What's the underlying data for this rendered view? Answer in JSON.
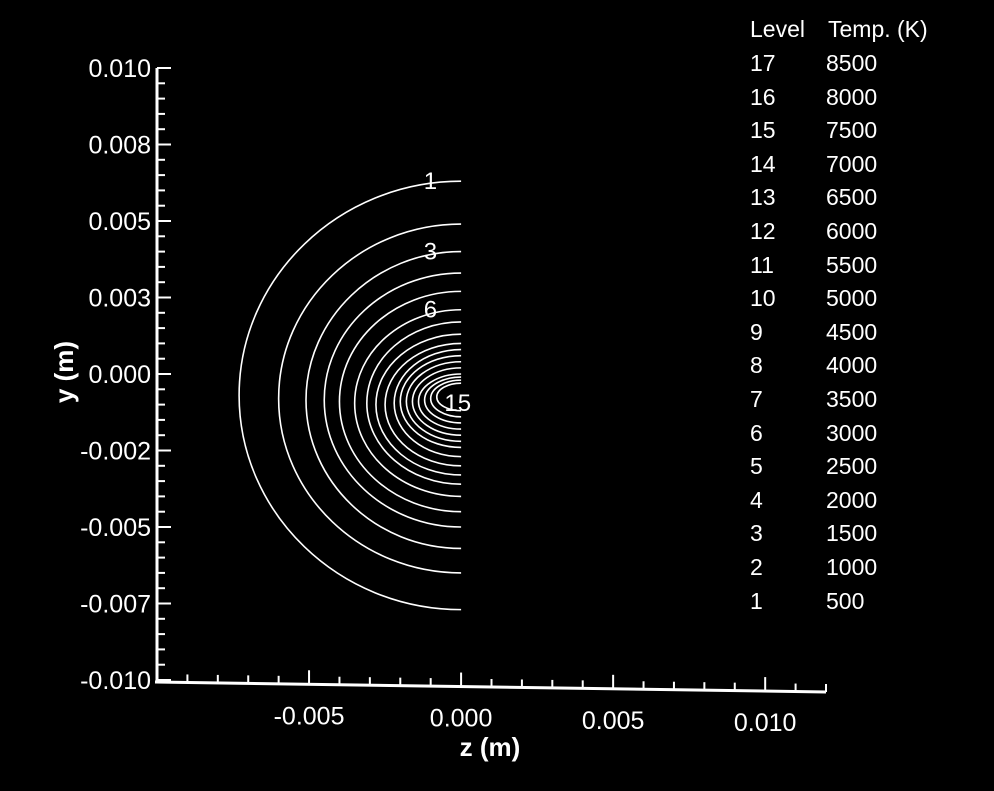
{
  "chart_data": {
    "type": "contour",
    "xlabel": "z (m)",
    "ylabel": "y (m)",
    "xlim": [
      -0.01,
      0.012
    ],
    "ylim": [
      -0.01,
      0.01
    ],
    "x_ticks": [
      "-0.005",
      "0.000",
      "0.005",
      "0.010"
    ],
    "x_tick_values": [
      -0.005,
      0.0,
      0.005,
      0.01
    ],
    "y_ticks": [
      "0.010",
      "0.008",
      "0.005",
      "0.003",
      "0.000",
      "-0.002",
      "-0.005",
      "-0.007",
      "-0.010"
    ],
    "y_tick_values": [
      0.01,
      0.0075,
      0.005,
      0.0025,
      0.0,
      -0.0025,
      -0.005,
      -0.0075,
      -0.01
    ],
    "legend": {
      "header_level": "Level",
      "header_temp": "Temp. (K)",
      "rows": [
        {
          "level": "17",
          "temp": "8500"
        },
        {
          "level": "16",
          "temp": "8000"
        },
        {
          "level": "15",
          "temp": "7500"
        },
        {
          "level": "14",
          "temp": "7000"
        },
        {
          "level": "13",
          "temp": "6500"
        },
        {
          "level": "12",
          "temp": "6000"
        },
        {
          "level": "11",
          "temp": "5500"
        },
        {
          "level": "10",
          "temp": "5000"
        },
        {
          "level": "9",
          "temp": "4500"
        },
        {
          "level": "8",
          "temp": "4000"
        },
        {
          "level": "7",
          "temp": "3500"
        },
        {
          "level": "6",
          "temp": "3000"
        },
        {
          "level": "5",
          "temp": "2500"
        },
        {
          "level": "4",
          "temp": "2000"
        },
        {
          "level": "3",
          "temp": "1500"
        },
        {
          "level": "2",
          "temp": "1000"
        },
        {
          "level": "1",
          "temp": "500"
        }
      ]
    },
    "contours": [
      {
        "level": 1,
        "temp": 500,
        "z_min": -0.0073,
        "y_top": 0.0063,
        "y_bottom": -0.0077,
        "label": "1"
      },
      {
        "level": 2,
        "temp": 1000,
        "z_min": -0.006,
        "y_top": 0.0049,
        "y_bottom": -0.0065,
        "label": ""
      },
      {
        "level": 3,
        "temp": 1500,
        "z_min": -0.0051,
        "y_top": 0.004,
        "y_bottom": -0.0057,
        "label": "3"
      },
      {
        "level": 4,
        "temp": 2000,
        "z_min": -0.0045,
        "y_top": 0.0033,
        "y_bottom": -0.005,
        "label": ""
      },
      {
        "level": 5,
        "temp": 2500,
        "z_min": -0.004,
        "y_top": 0.0027,
        "y_bottom": -0.0045,
        "label": ""
      },
      {
        "level": 6,
        "temp": 3000,
        "z_min": -0.0035,
        "y_top": 0.0021,
        "y_bottom": -0.004,
        "label": "6"
      },
      {
        "level": 7,
        "temp": 3500,
        "z_min": -0.0031,
        "y_top": 0.0017,
        "y_bottom": -0.0036,
        "label": ""
      },
      {
        "level": 8,
        "temp": 4000,
        "z_min": -0.0028,
        "y_top": 0.0013,
        "y_bottom": -0.0033,
        "label": ""
      },
      {
        "level": 9,
        "temp": 4500,
        "z_min": -0.0025,
        "y_top": 0.001,
        "y_bottom": -0.003,
        "label": ""
      },
      {
        "level": 10,
        "temp": 5000,
        "z_min": -0.0022,
        "y_top": 0.0008,
        "y_bottom": -0.0027,
        "label": ""
      },
      {
        "level": 11,
        "temp": 5500,
        "z_min": -0.002,
        "y_top": 0.0006,
        "y_bottom": -0.0024,
        "label": ""
      },
      {
        "level": 12,
        "temp": 6000,
        "z_min": -0.0018,
        "y_top": 0.0004,
        "y_bottom": -0.0022,
        "label": ""
      },
      {
        "level": 13,
        "temp": 6500,
        "z_min": -0.0016,
        "y_top": 0.0002,
        "y_bottom": -0.002,
        "label": ""
      },
      {
        "level": 14,
        "temp": 7000,
        "z_min": -0.0014,
        "y_top": 0.0,
        "y_bottom": -0.0018,
        "label": ""
      },
      {
        "level": 15,
        "temp": 7500,
        "z_min": -0.0012,
        "y_top": -0.0001,
        "y_bottom": -0.0016,
        "label": "15"
      },
      {
        "level": 16,
        "temp": 8000,
        "z_min": -0.001,
        "y_top": -0.0002,
        "y_bottom": -0.0014,
        "label": ""
      },
      {
        "level": 17,
        "temp": 8500,
        "z_min": -0.0008,
        "y_top": -0.0003,
        "y_bottom": -0.0012,
        "label": ""
      }
    ],
    "colors": {
      "background": "#000000",
      "foreground": "#ffffff"
    },
    "grid": false
  }
}
